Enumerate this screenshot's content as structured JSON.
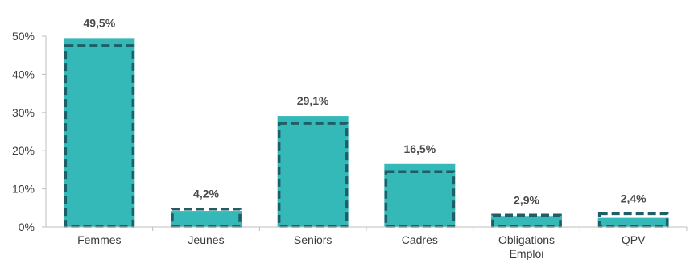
{
  "chart_data": {
    "type": "bar",
    "title": "",
    "xlabel": "",
    "ylabel": "",
    "ylim": [
      0,
      50
    ],
    "yticks": [
      0,
      10,
      20,
      30,
      40,
      50
    ],
    "ytick_labels": [
      "0%",
      "10%",
      "20%",
      "30%",
      "40%",
      "50%"
    ],
    "grid": false,
    "categories": [
      "Femmes",
      "Jeunes",
      "Seniors",
      "Cadres",
      "Obligations Emploi",
      "QPV"
    ],
    "category_lines": [
      [
        "Femmes"
      ],
      [
        "Jeunes"
      ],
      [
        "Seniors"
      ],
      [
        "Cadres"
      ],
      [
        "Obligations",
        "Emploi"
      ],
      [
        "QPV"
      ]
    ],
    "series": [
      {
        "values": [
          49.5,
          4.2,
          29.1,
          16.5,
          2.9,
          2.4
        ]
      },
      {
        "values": [
          47.5,
          4.7,
          27.2,
          14.5,
          3.1,
          3.5
        ]
      }
    ],
    "value_labels": [
      "49,5%",
      "4,2%",
      "29,1%",
      "16,5%",
      "2,9%",
      "2,4%"
    ],
    "colors": {
      "bar_fill": "#35b8b8",
      "dashed_outline": "#1f5e66",
      "axis": "#bfbfbf"
    }
  }
}
